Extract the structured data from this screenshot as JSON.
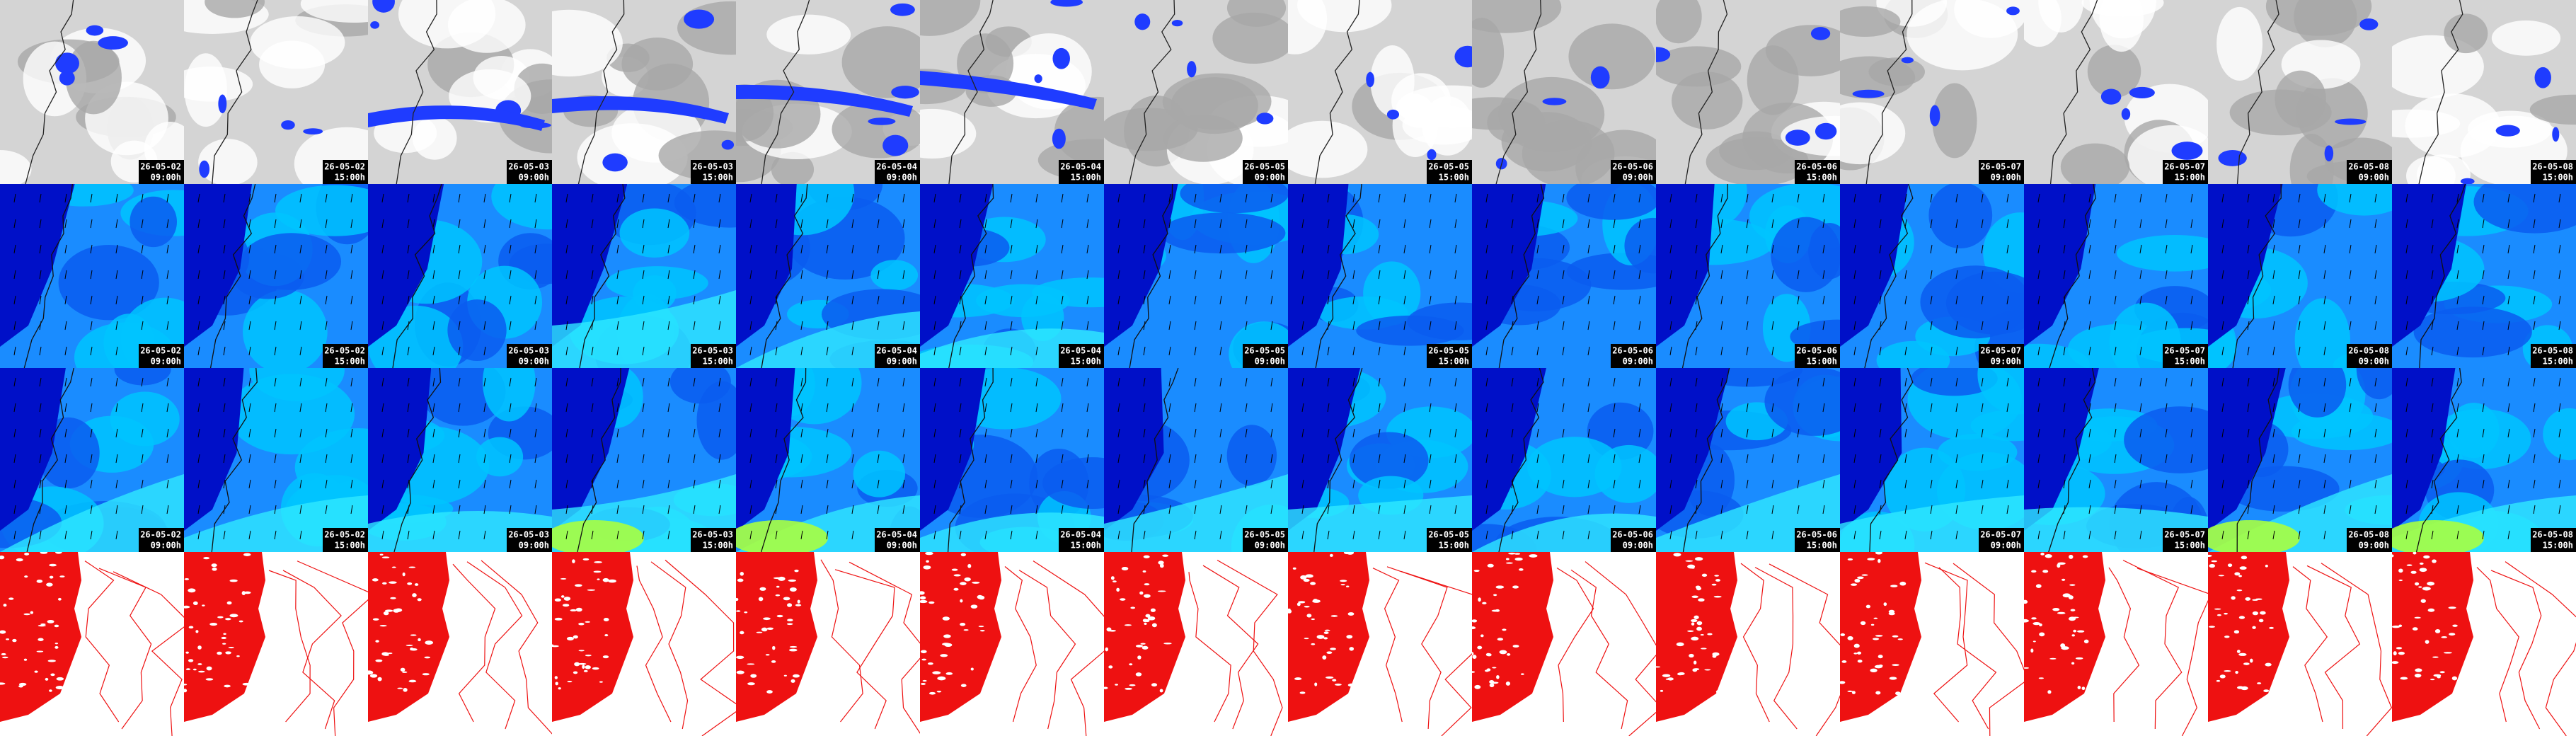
{
  "frames": [
    {
      "date": "26-05-02",
      "time": "09:00h"
    },
    {
      "date": "26-05-02",
      "time": "15:00h"
    },
    {
      "date": "26-05-03",
      "time": "09:00h"
    },
    {
      "date": "26-05-03",
      "time": "15:00h"
    },
    {
      "date": "26-05-04",
      "time": "09:00h"
    },
    {
      "date": "26-05-04",
      "time": "15:00h"
    },
    {
      "date": "26-05-05",
      "time": "09:00h"
    },
    {
      "date": "26-05-05",
      "time": "15:00h"
    },
    {
      "date": "26-05-06",
      "time": "09:00h"
    },
    {
      "date": "26-05-06",
      "time": "15:00h"
    },
    {
      "date": "26-05-07",
      "time": "09:00h"
    },
    {
      "date": "26-05-07",
      "time": "15:00h"
    },
    {
      "date": "26-05-08",
      "time": "09:00h"
    },
    {
      "date": "26-05-08",
      "time": "15:00h"
    }
  ]
}
